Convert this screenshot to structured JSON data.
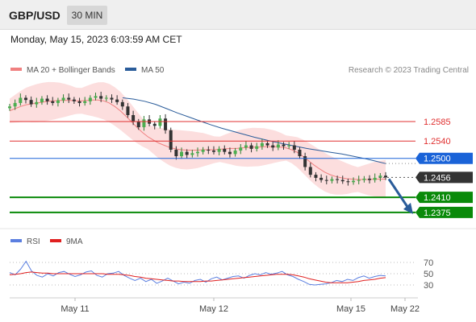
{
  "header": {
    "symbol": "GBP/USD",
    "timeframe": "30 MIN",
    "datetime": "Monday, May 15, 2023 6:03:59 AM CET"
  },
  "legend": {
    "ma20": "MA 20 + Bollinger Bands",
    "ma50": "MA 50",
    "ma20_color": "#f08080",
    "ma50_color": "#2a5c9a",
    "credit": "Research © 2023 Trading Central"
  },
  "rsi_legend": {
    "rsi": "RSI",
    "ma9": "9MA",
    "rsi_color": "#5b7fe0",
    "ma9_color": "#e02020"
  },
  "chart_data": [
    {
      "type": "candlestick",
      "title": "GBP/USD",
      "interval": "30 MIN",
      "x_ticks": [
        "May 11",
        "May 12",
        "May 15",
        "May 22"
      ],
      "ylim": [
        1.2345,
        1.268
      ],
      "levels": [
        {
          "label": "1.2585",
          "value": 1.2585,
          "kind": "resistance",
          "color": "#e03030"
        },
        {
          "label": "1.2540",
          "value": 1.254,
          "kind": "resistance",
          "color": "#e03030"
        },
        {
          "label": "1.2500",
          "value": 1.25,
          "kind": "pivot",
          "color": "#1a63d8"
        },
        {
          "label": "1.2456",
          "value": 1.2456,
          "kind": "current",
          "color": "#333333"
        },
        {
          "label": "1.2410",
          "value": 1.241,
          "kind": "support",
          "color": "#0a8a0a"
        },
        {
          "label": "1.2375",
          "value": 1.2375,
          "kind": "support",
          "color": "#0a8a0a"
        }
      ],
      "forecast_arrow": {
        "from": 1.2456,
        "to": 1.2375,
        "color": "#2a5c9a"
      },
      "close_series": [
        1.262,
        1.2628,
        1.264,
        1.2635,
        1.2625,
        1.263,
        1.2638,
        1.2632,
        1.2628,
        1.2634,
        1.264,
        1.2636,
        1.2632,
        1.2628,
        1.2632,
        1.264,
        1.2644,
        1.2638,
        1.264,
        1.2636,
        1.263,
        1.262,
        1.26,
        1.2585,
        1.2572,
        1.259,
        1.258,
        1.2575,
        1.2592,
        1.2565,
        1.252,
        1.2505,
        1.2515,
        1.2508,
        1.2512,
        1.2515,
        1.252,
        1.2518,
        1.2515,
        1.2522,
        1.2515,
        1.251,
        1.2518,
        1.2525,
        1.253,
        1.2522,
        1.2528,
        1.2535,
        1.253,
        1.2525,
        1.2532,
        1.2528,
        1.253,
        1.252,
        1.2505,
        1.248,
        1.2462,
        1.2455,
        1.245,
        1.2448,
        1.2452,
        1.245,
        1.2447,
        1.2445,
        1.2448,
        1.245,
        1.2453,
        1.245,
        1.2455,
        1.246,
        1.2456
      ],
      "ma20_series": [
        1.261,
        1.2615,
        1.262,
        1.2624,
        1.2626,
        1.2628,
        1.263,
        1.2632,
        1.2633,
        1.2634,
        1.2634,
        1.2634,
        1.2633,
        1.2633,
        1.2634,
        1.2635,
        1.2635,
        1.2633,
        1.2628,
        1.262,
        1.261,
        1.2598,
        1.2585,
        1.2572,
        1.256,
        1.255,
        1.2542,
        1.2535,
        1.253,
        1.2525,
        1.2522,
        1.252,
        1.2519,
        1.2519,
        1.2519,
        1.252,
        1.252,
        1.252,
        1.2521,
        1.2522,
        1.2523,
        1.2523,
        1.2524,
        1.2525,
        1.2526,
        1.2526,
        1.2527,
        1.2527,
        1.2527,
        1.2526,
        1.2524,
        1.252,
        1.2514,
        1.2505,
        1.2495,
        1.2485,
        1.2476,
        1.2468,
        1.2462,
        1.2458,
        1.2455,
        1.2453,
        1.2452,
        1.2451,
        1.2451,
        1.2451,
        1.2452,
        1.2452,
        1.2452
      ],
      "ma50_series": [
        1.264,
        1.2637,
        1.2632,
        1.2625,
        1.2615,
        1.2605,
        1.2596,
        1.2587,
        1.2578,
        1.257,
        1.2563,
        1.2556,
        1.2549,
        1.2543,
        1.2537,
        1.2532,
        1.2527,
        1.2522,
        1.2518,
        1.2514,
        1.251,
        1.2505,
        1.25,
        1.2494,
        1.2488
      ],
      "bollinger_width": 0.0028
    },
    {
      "type": "line",
      "title": "RSI",
      "series": [
        {
          "name": "RSI",
          "color": "#5b7fe0",
          "values": [
            52,
            48,
            58,
            72,
            55,
            47,
            44,
            50,
            46,
            52,
            54,
            49,
            45,
            48,
            53,
            55,
            47,
            44,
            50,
            51,
            54,
            47,
            42,
            38,
            42,
            36,
            40,
            33,
            37,
            42,
            37,
            32,
            35,
            33,
            38,
            40,
            35,
            41,
            44,
            39,
            42,
            45,
            46,
            42,
            47,
            50,
            48,
            52,
            49,
            51,
            54,
            48,
            45,
            40,
            36,
            31,
            30,
            31,
            32,
            34,
            38,
            36,
            40,
            38,
            43,
            46,
            42,
            45,
            47,
            46
          ]
        },
        {
          "name": "9MA",
          "color": "#e02020",
          "values": [
            48,
            49,
            50,
            52,
            53,
            52,
            51,
            51,
            50,
            50,
            50,
            50,
            50,
            50,
            50,
            50,
            50,
            50,
            49,
            49,
            49,
            48,
            47,
            45,
            44,
            42,
            41,
            40,
            39,
            38,
            37,
            37,
            36,
            36,
            36,
            36,
            37,
            37,
            38,
            39,
            40,
            41,
            42,
            43,
            44,
            45,
            46,
            47,
            48,
            49,
            49,
            49,
            48,
            46,
            44,
            41,
            39,
            37,
            35,
            34,
            34,
            34,
            34,
            35,
            36,
            38,
            39,
            40,
            42,
            43
          ]
        }
      ],
      "ylim": [
        10,
        90
      ],
      "y_ticks": [
        "70",
        "50",
        "30"
      ]
    }
  ]
}
